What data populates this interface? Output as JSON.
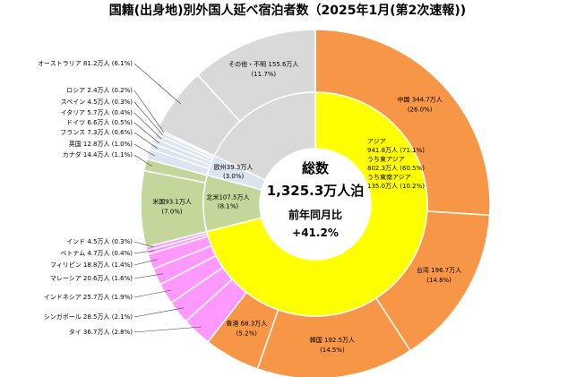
{
  "chart_data": {
    "type": "pie",
    "title": "国籍(出身地)別外国人延べ宿泊者数（2025年1月(第2次速報))",
    "center": {
      "line1": "総数",
      "line2": "1,325.3万人泊",
      "line3": "前年同月比",
      "line4": "+41.2%"
    },
    "colors": {
      "asia_inner": "#ffff00",
      "asia_outer": "#f79646",
      "asean": "#ff99ff",
      "north_america": "#c4d79b",
      "europe": "#dbe5f1",
      "other": "#d9d9d9",
      "border": "#ffffff"
    },
    "inner_ring": [
      {
        "name": "アジア",
        "value": 941.8,
        "color_key": "asia_inner",
        "lines": [
          "アジア",
          "941.8万人 (71.1%)",
          "うち東アジア",
          "802.3万人 (60.5%)",
          "うち東南アジア",
          "135.0万人 (10.2%)"
        ]
      },
      {
        "name": "北米",
        "value": 107.5,
        "color_key": "north_america",
        "lines": [
          "北米107.5万人",
          "(8.1%)"
        ]
      },
      {
        "name": "欧州",
        "value": 39.3,
        "color_key": "europe",
        "lines": [
          "欧州39.3万人",
          "(3.0%)"
        ]
      },
      {
        "name": "その他・不明",
        "value": 236.7,
        "color_key": "other",
        "lines": []
      }
    ],
    "outer_ring": [
      {
        "name": "中国",
        "value": 344.7,
        "color_key": "asia_outer",
        "lines": [
          "中国 344.7万人",
          "(26.0%)"
        ]
      },
      {
        "name": "台湾",
        "value": 196.7,
        "color_key": "asia_outer",
        "lines": [
          "台湾 196.7万人",
          "(14.8%)"
        ]
      },
      {
        "name": "韓国",
        "value": 192.5,
        "color_key": "asia_outer",
        "lines": [
          "韓国 192.5万人",
          "(14.5%)"
        ]
      },
      {
        "name": "香港",
        "value": 68.3,
        "color_key": "asia_outer",
        "lines": [
          "香港 68.3万人",
          "(5.2%)"
        ]
      },
      {
        "name": "タイ",
        "value": 36.7,
        "color_key": "asean",
        "lines": [
          "タイ 36.7万人 (2.8%)"
        ]
      },
      {
        "name": "シンガポール",
        "value": 28.5,
        "color_key": "asean",
        "lines": [
          "シンガポール 28.5万人 (2.1%)"
        ]
      },
      {
        "name": "インドネシア",
        "value": 25.7,
        "color_key": "asean",
        "lines": [
          "インドネシア 25.7万人 (1.9%)"
        ]
      },
      {
        "name": "マレーシア",
        "value": 20.6,
        "color_key": "asean",
        "lines": [
          "マレーシア 20.6万人 (1.6%)"
        ]
      },
      {
        "name": "フィリピン",
        "value": 18.8,
        "color_key": "asean",
        "lines": [
          "フィリピン 18.8万人 (1.4%)"
        ]
      },
      {
        "name": "ベトナム",
        "value": 4.7,
        "color_key": "asean",
        "lines": [
          "ベトナム 4.7万人 (0.4%)"
        ]
      },
      {
        "name": "インド",
        "value": 4.5,
        "color_key": "asean",
        "lines": [
          "インド 4.5万人 (0.3%)"
        ]
      },
      {
        "name": "米国",
        "value": 93.1,
        "color_key": "north_america",
        "lines": [
          "米国93.1万人",
          "(7.0%)"
        ]
      },
      {
        "name": "カナダ",
        "value": 14.4,
        "color_key": "north_america",
        "lines": [
          "カナダ 14.4万人 (1.1%)"
        ]
      },
      {
        "name": "英国",
        "value": 12.8,
        "color_key": "europe",
        "lines": [
          "英国 12.8万人 (1.0%)"
        ]
      },
      {
        "name": "フランス",
        "value": 7.3,
        "color_key": "europe",
        "lines": [
          "フランス 7.3万人 (0.6%)"
        ]
      },
      {
        "name": "ドイツ",
        "value": 6.6,
        "color_key": "europe",
        "lines": [
          "ドイツ 6.6万人 (0.5%)"
        ]
      },
      {
        "name": "イタリア",
        "value": 5.7,
        "color_key": "europe",
        "lines": [
          "イタリア 5.7万人 (0.4%)"
        ]
      },
      {
        "name": "スペイン",
        "value": 4.5,
        "color_key": "europe",
        "lines": [
          "スペイン 4.5万人 (0.3%)"
        ]
      },
      {
        "name": "ロシア",
        "value": 2.4,
        "color_key": "europe",
        "lines": [
          "ロシア 2.4万人 (0.2%)"
        ]
      },
      {
        "name": "オーストラリア",
        "value": 81.2,
        "color_key": "other",
        "lines": [
          "オーストラリア 81.2万人 (6.1%)"
        ]
      },
      {
        "name": "その他・不明",
        "value": 155.6,
        "color_key": "other",
        "lines": [
          "その他・不明 155.6万人",
          "(11.7%)"
        ]
      }
    ]
  }
}
